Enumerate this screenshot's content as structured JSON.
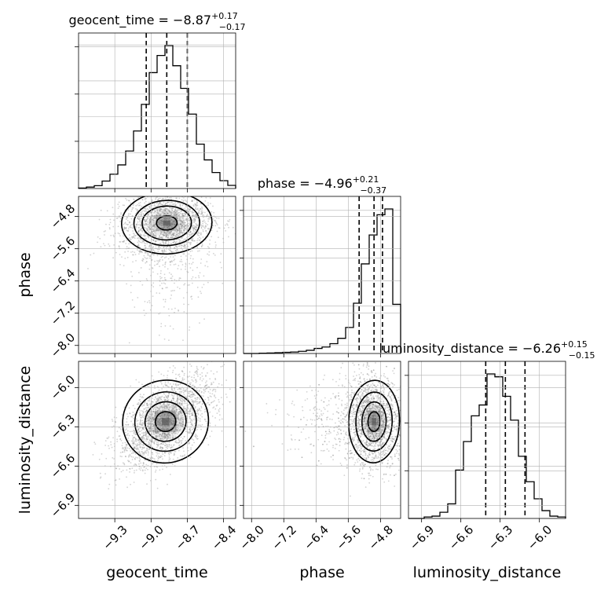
{
  "chart_data": {
    "type": "corner",
    "parameters": [
      {
        "name": "geocent_time",
        "title_main": "geocent_time = −8.87",
        "title_sup": "+0.17",
        "title_sub": "−0.17",
        "median": -8.87,
        "lower": -9.04,
        "upper": -8.7,
        "range": [
          -9.6,
          -8.3
        ],
        "ticks": [
          -9.3,
          -9.0,
          -8.7,
          -8.4
        ],
        "tick_labels": [
          "−9.3",
          "−9.0",
          "−8.7",
          "−8.4"
        ],
        "axis_label": "geocent_time",
        "hist_bins": [
          -9.6,
          -9.535,
          -9.47,
          -9.405,
          -9.34,
          -9.275,
          -9.21,
          -9.145,
          -9.08,
          -9.015,
          -8.95,
          -8.885,
          -8.82,
          -8.755,
          -8.69,
          -8.625,
          -8.56,
          -8.495,
          -8.43,
          -8.365,
          -8.3
        ],
        "hist_counts": [
          0.3,
          1.0,
          2.0,
          5.2,
          10.0,
          16.5,
          26.2,
          40.2,
          58.8,
          81.0,
          93.0,
          100.0,
          85.8,
          70.0,
          52.0,
          31.0,
          20.0,
          11.2,
          5.5,
          2.2
        ]
      },
      {
        "name": "phase",
        "title_main": "phase = −4.96",
        "title_sup": "+0.21",
        "title_sub": "−0.37",
        "median": -4.96,
        "lower": -5.33,
        "upper": -4.75,
        "range": [
          -8.2,
          -4.3
        ],
        "ticks": [
          -8.0,
          -7.2,
          -6.4,
          -5.6,
          -4.8
        ],
        "tick_labels": [
          "−8.0",
          "−7.2",
          "−6.4",
          "−5.6",
          "−4.8"
        ],
        "axis_label": "phase",
        "hist_bins": [
          -8.2,
          -8.005,
          -7.81,
          -7.615,
          -7.42,
          -7.225,
          -7.03,
          -6.835,
          -6.64,
          -6.445,
          -6.25,
          -6.055,
          -5.86,
          -5.665,
          -5.47,
          -5.275,
          -5.08,
          -4.885,
          -4.69,
          -4.495,
          -4.3
        ],
        "hist_counts": [
          0.0,
          0.0,
          0.2,
          0.3,
          0.5,
          0.8,
          1.0,
          1.5,
          2.2,
          3.5,
          4.5,
          6.8,
          10.5,
          18.0,
          34.8,
          62.0,
          82.0,
          96.0,
          100.0,
          34.0
        ]
      },
      {
        "name": "luminosity_distance",
        "title_main": "luminosity_distance = −6.26",
        "title_sup": "+0.15",
        "title_sub": "−0.15",
        "median": -6.26,
        "lower": -6.41,
        "upper": -6.11,
        "range": [
          -7.0,
          -5.8
        ],
        "ticks": [
          -6.9,
          -6.6,
          -6.3,
          -6.0
        ],
        "tick_labels": [
          "−6.9",
          "−6.6",
          "−6.3",
          "−6.0"
        ],
        "axis_label": "luminosity_distance",
        "hist_bins": [
          -7.0,
          -6.94,
          -6.88,
          -6.82,
          -6.76,
          -6.7,
          -6.64,
          -6.58,
          -6.52,
          -6.46,
          -6.4,
          -6.34,
          -6.28,
          -6.22,
          -6.16,
          -6.1,
          -6.04,
          -5.98,
          -5.92,
          -5.86,
          -5.8
        ],
        "hist_counts": [
          0.0,
          0.0,
          1.0,
          1.6,
          4.3,
          10.1,
          33.5,
          53.2,
          71.0,
          78.5,
          100.0,
          98.0,
          84.5,
          68.0,
          43.0,
          25.4,
          13.6,
          5.4,
          1.6,
          1.0
        ]
      }
    ],
    "pairs": [
      {
        "x": "geocent_time",
        "y": "phase",
        "center": [
          -8.87,
          -4.96
        ],
        "spread": [
          0.17,
          0.35
        ],
        "corr": 0.05,
        "contour_levels": [
          0.5,
          1.2,
          1.6,
          2.2
        ]
      },
      {
        "x": "geocent_time",
        "y": "luminosity_distance",
        "center": [
          -8.88,
          -6.26
        ],
        "spread": [
          0.17,
          0.15
        ],
        "corr": 0.55,
        "contour_levels": [
          0.5,
          1.0,
          1.5,
          2.1
        ]
      },
      {
        "x": "phase",
        "y": "luminosity_distance",
        "center": [
          -4.96,
          -6.26
        ],
        "spread": [
          0.3,
          0.15
        ],
        "corr": -0.05,
        "contour_levels": [
          0.5,
          1.0,
          1.5,
          2.1
        ]
      }
    ],
    "grid": true,
    "colors": {
      "lines": "#000000",
      "grid": "#b0b0b0",
      "density": "#555555",
      "points": "#808080"
    }
  }
}
